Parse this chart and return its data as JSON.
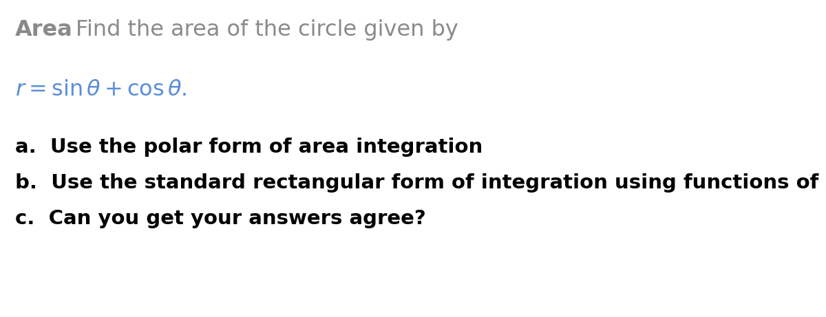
{
  "background_color": "#ffffff",
  "title_bold": "Area",
  "title_regular": "Find the area of the circle given by",
  "title_color": "#8a8a8a",
  "title_fontsize": 23,
  "equation_color": "#5b8dd9",
  "equation_fontsize": 23,
  "items": [
    "a.  Use the polar form of area integration",
    "b.  Use the standard rectangular form of integration using functions of x",
    "c.  Can you get your answers agree?"
  ],
  "items_fontsize": 21,
  "items_color": "#000000",
  "fig_width": 12.0,
  "fig_height": 4.61,
  "dpi": 100
}
